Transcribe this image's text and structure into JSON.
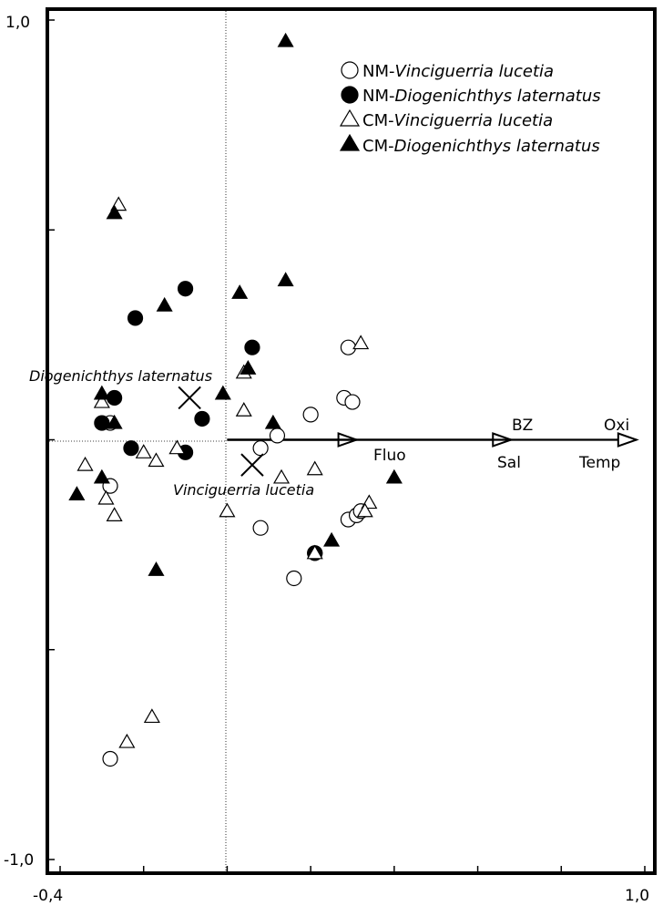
{
  "chart_data": {
    "type": "scatter",
    "xlim": [
      -0.4,
      1.0
    ],
    "ylim": [
      -1.0,
      1.0
    ],
    "x_tick_labels": [
      "-0,4",
      "1,0"
    ],
    "y_tick_labels": [
      "1,0",
      "-1,0"
    ],
    "legend": [
      {
        "prefix": "NM-",
        "species": "Vinciguerria lucetia",
        "marker": "open-circle"
      },
      {
        "prefix": "NM-",
        "species": "Diogenichthys laternatus",
        "marker": "filled-circle"
      },
      {
        "prefix": "CM-",
        "species": "Vinciguerria lucetia",
        "marker": "open-triangle"
      },
      {
        "prefix": "CM-",
        "species": "Diogenichthys laternatus",
        "marker": "filled-triangle"
      }
    ],
    "species_centroids": [
      {
        "label": "Diogenichthys laternatus",
        "x": -0.09,
        "y": 0.1
      },
      {
        "label": "Vinciguerria lucetia",
        "x": 0.06,
        "y": -0.06
      }
    ],
    "vectors": [
      {
        "labels": [
          "Fluo"
        ],
        "x": 0.31,
        "y": 0.0
      },
      {
        "labels": [
          "BZ",
          "Sal"
        ],
        "x": 0.68,
        "y": 0.0
      },
      {
        "labels": [
          "Oxi",
          "Temp"
        ],
        "x": 0.98,
        "y": 0.0
      }
    ],
    "series": [
      {
        "name": "NM-Vinciguerria lucetia",
        "marker": "open-circle",
        "points": [
          [
            0.29,
            0.22
          ],
          [
            0.28,
            0.1
          ],
          [
            0.3,
            0.09
          ],
          [
            0.2,
            0.06
          ],
          [
            0.12,
            0.01
          ],
          [
            0.08,
            -0.02
          ],
          [
            -0.28,
            0.04
          ],
          [
            -0.28,
            -0.11
          ],
          [
            0.29,
            -0.19
          ],
          [
            0.31,
            -0.18
          ],
          [
            0.32,
            -0.17
          ],
          [
            0.21,
            -0.27
          ],
          [
            0.08,
            -0.21
          ],
          [
            0.16,
            -0.33
          ],
          [
            -0.28,
            -0.76
          ]
        ]
      },
      {
        "name": "NM-Diogenichthys laternatus",
        "marker": "filled-circle",
        "points": [
          [
            -0.1,
            0.36
          ],
          [
            -0.22,
            0.29
          ],
          [
            0.06,
            0.22
          ],
          [
            -0.27,
            0.1
          ],
          [
            -0.3,
            0.04
          ],
          [
            -0.06,
            0.05
          ],
          [
            -0.23,
            -0.02
          ],
          [
            -0.1,
            -0.03
          ],
          [
            0.21,
            -0.27
          ]
        ]
      },
      {
        "name": "CM-Vinciguerria lucetia",
        "marker": "open-triangle",
        "points": [
          [
            -0.26,
            0.56
          ],
          [
            0.32,
            0.23
          ],
          [
            0.04,
            0.16
          ],
          [
            -0.3,
            0.09
          ],
          [
            0.04,
            0.07
          ],
          [
            -0.2,
            -0.03
          ],
          [
            -0.17,
            -0.05
          ],
          [
            -0.12,
            -0.02
          ],
          [
            -0.34,
            -0.06
          ],
          [
            -0.29,
            -0.14
          ],
          [
            -0.27,
            -0.18
          ],
          [
            0.13,
            -0.09
          ],
          [
            0.21,
            -0.07
          ],
          [
            0.34,
            -0.15
          ],
          [
            0.33,
            -0.17
          ],
          [
            0.0,
            -0.17
          ],
          [
            0.21,
            -0.27
          ],
          [
            -0.24,
            -0.72
          ],
          [
            -0.18,
            -0.66
          ]
        ]
      },
      {
        "name": "CM-Diogenichthys laternatus",
        "marker": "filled-triangle",
        "points": [
          [
            0.14,
            0.95
          ],
          [
            -0.27,
            0.54
          ],
          [
            0.14,
            0.38
          ],
          [
            0.03,
            0.35
          ],
          [
            -0.15,
            0.32
          ],
          [
            0.05,
            0.17
          ],
          [
            -0.3,
            0.11
          ],
          [
            -0.01,
            0.11
          ],
          [
            -0.27,
            0.04
          ],
          [
            0.11,
            0.04
          ],
          [
            -0.3,
            -0.09
          ],
          [
            -0.36,
            -0.13
          ],
          [
            0.4,
            -0.09
          ],
          [
            0.25,
            -0.24
          ],
          [
            -0.17,
            -0.31
          ]
        ]
      }
    ]
  }
}
